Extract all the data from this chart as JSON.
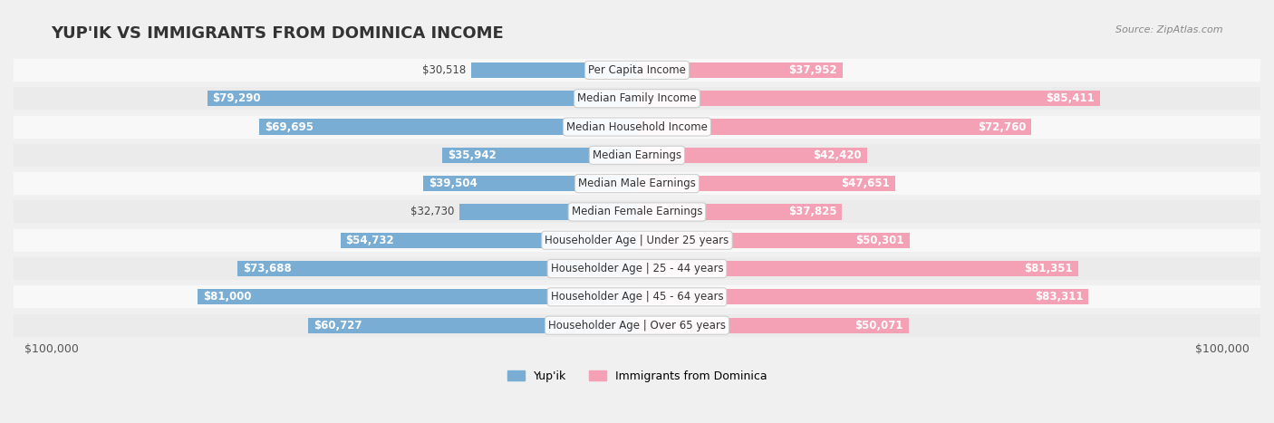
{
  "title": "YUP'IK VS IMMIGRANTS FROM DOMINICA INCOME",
  "source": "Source: ZipAtlas.com",
  "categories": [
    "Per Capita Income",
    "Median Family Income",
    "Median Household Income",
    "Median Earnings",
    "Median Male Earnings",
    "Median Female Earnings",
    "Householder Age | Under 25 years",
    "Householder Age | 25 - 44 years",
    "Householder Age | 45 - 64 years",
    "Householder Age | Over 65 years"
  ],
  "yupik_values": [
    30518,
    79290,
    69695,
    35942,
    39504,
    32730,
    54732,
    73688,
    81000,
    60727
  ],
  "dominica_values": [
    37952,
    85411,
    72760,
    42420,
    47651,
    37825,
    50301,
    81351,
    83311,
    50071
  ],
  "yupik_labels": [
    "$30,518",
    "$79,290",
    "$69,695",
    "$35,942",
    "$39,504",
    "$32,730",
    "$54,732",
    "$73,688",
    "$81,000",
    "$60,727"
  ],
  "dominica_labels": [
    "$37,952",
    "$85,411",
    "$72,760",
    "$42,420",
    "$47,651",
    "$37,825",
    "$50,301",
    "$81,351",
    "$83,311",
    "$50,071"
  ],
  "max_value": 100000,
  "yupik_color": "#7aadd4",
  "yupik_color_dark": "#5b9ec9",
  "dominica_color": "#f4a0b5",
  "dominica_color_dark": "#e8698a",
  "bg_color": "#f0f0f0",
  "row_bg_light": "#f8f8f8",
  "row_bg_dark": "#ebebeb",
  "legend_yupik": "Yup'ik",
  "legend_dominica": "Immigrants from Dominica",
  "xlabel_left": "$100,000",
  "xlabel_right": "$100,000",
  "title_fontsize": 13,
  "label_fontsize": 8.5,
  "category_fontsize": 8.5
}
